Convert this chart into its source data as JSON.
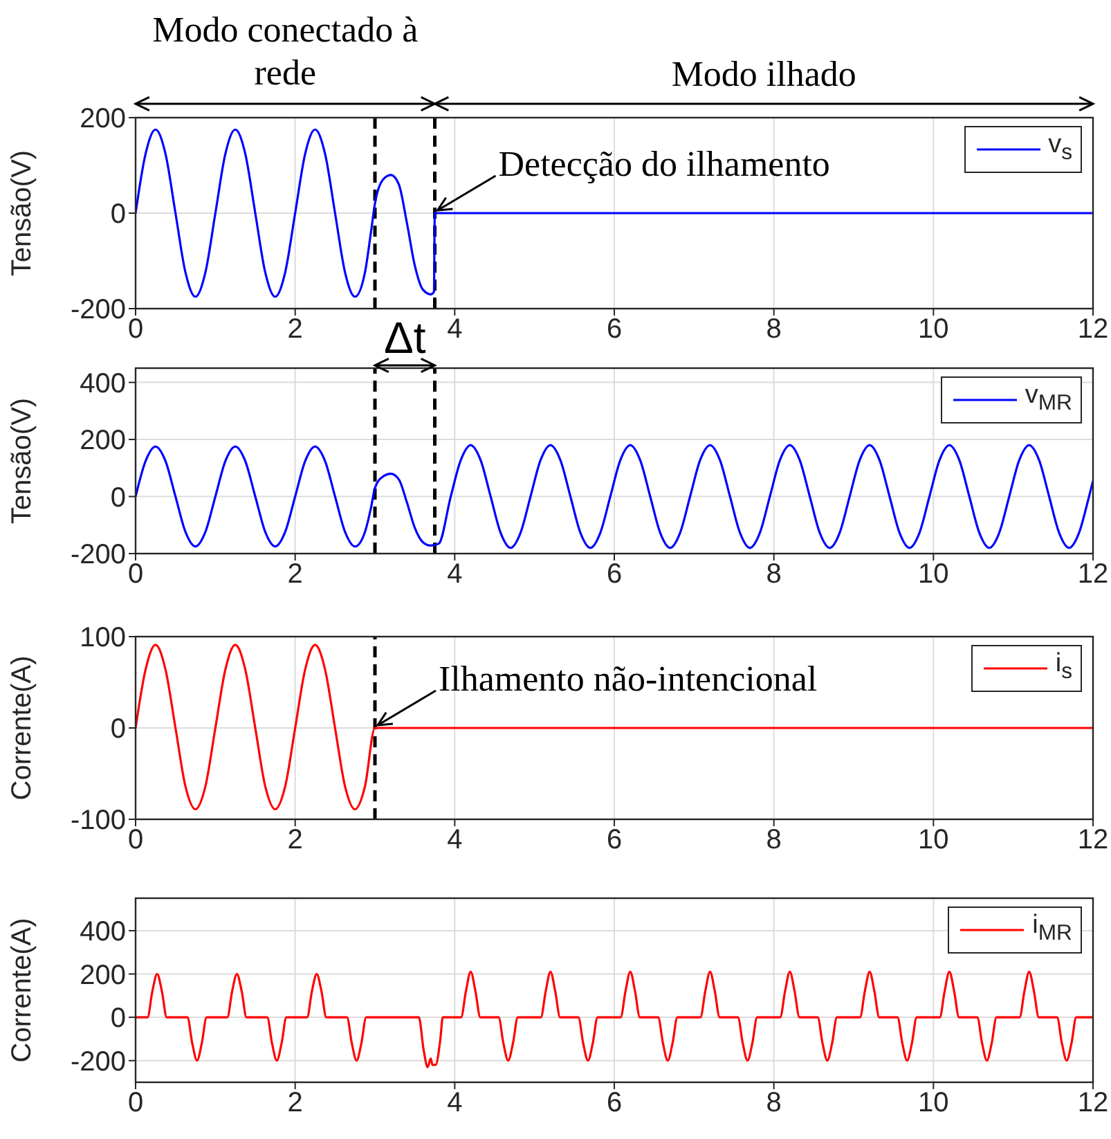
{
  "chart_data": [
    {
      "type": "line",
      "ylabel": "Tensão(V)",
      "xlim": [
        0,
        12
      ],
      "xticks": [
        0,
        2,
        4,
        6,
        8,
        10,
        12
      ],
      "ylim": [
        -200,
        200
      ],
      "yticks": [
        -200,
        0,
        200
      ],
      "grid": true,
      "legend": "top right",
      "line_style": "solid",
      "series": [
        {
          "name": "v$_{s}$",
          "color": "#0000ff",
          "x": [
            0,
            0.125,
            0.25,
            0.375,
            0.5,
            0.625,
            0.75,
            0.875,
            1,
            1.125,
            1.25,
            1.375,
            1.5,
            1.625,
            1.75,
            1.875,
            2,
            2.125,
            2.25,
            2.375,
            2.5,
            2.625,
            2.75,
            2.875,
            2.95,
            3.0,
            3.1,
            3.2,
            3.3,
            3.4,
            3.5,
            3.6,
            3.7,
            3.74,
            3.75,
            12
          ],
          "values": [
            0,
            124,
            175,
            124,
            0,
            -124,
            -175,
            -124,
            0,
            124,
            175,
            124,
            0,
            -124,
            -175,
            -124,
            0,
            124,
            175,
            124,
            0,
            -124,
            -175,
            -124,
            -40,
            20,
            70,
            80,
            60,
            -20,
            -110,
            -160,
            -170,
            -165,
            0,
            0
          ]
        }
      ],
      "ref_lines": [
        {
          "axis": "x",
          "value": 3,
          "color": "#000000",
          "line_style": "dashed"
        },
        {
          "axis": "x",
          "value": 3.75,
          "color": "#000000",
          "line_style": "dashed"
        }
      ],
      "annotations": [
        "Modo conectado à rede",
        "Modo ilhado",
        "Δt",
        {
          "text": "Detecção do ilhamento",
          "x": 3.75,
          "y": 0
        }
      ]
    },
    {
      "type": "line",
      "ylabel": "Tensão(V)",
      "xlim": [
        0,
        12
      ],
      "xticks": [
        0,
        2,
        4,
        6,
        8,
        10,
        12
      ],
      "ylim": [
        -200,
        450
      ],
      "yticks": [
        -200,
        0,
        200,
        400
      ],
      "grid": true,
      "legend": "top right",
      "line_style": "solid",
      "series": [
        {
          "name": "v$_{MR}$",
          "color": "#0000ff",
          "x": [
            0,
            0.125,
            0.25,
            0.375,
            0.5,
            0.625,
            0.75,
            0.875,
            1,
            1.125,
            1.25,
            1.375,
            1.5,
            1.625,
            1.75,
            1.875,
            2,
            2.125,
            2.25,
            2.375,
            2.5,
            2.625,
            2.75,
            2.875,
            2.95,
            3.0,
            3.1,
            3.2,
            3.3,
            3.4,
            3.5,
            3.6,
            3.7,
            3.8,
            3.95,
            4.075,
            4.2,
            4.325,
            4.45,
            4.575,
            4.7,
            4.825,
            4.95,
            5.075,
            5.2,
            5.325,
            5.45,
            5.575,
            5.7,
            5.825,
            5.95,
            6.075,
            6.2,
            6.325,
            6.45,
            6.575,
            6.7,
            6.825,
            6.95,
            7.075,
            7.2,
            7.325,
            7.45,
            7.575,
            7.7,
            7.825,
            7.95,
            8.075,
            8.2,
            8.325,
            8.45,
            8.575,
            8.7,
            8.825,
            8.95,
            9.075,
            9.2,
            9.325,
            9.45,
            9.575,
            9.7,
            9.825,
            9.95,
            10.075,
            10.2,
            10.325,
            10.45,
            10.575,
            10.7,
            10.825,
            10.95,
            11.075,
            11.2,
            11.325,
            11.45,
            11.575,
            11.7,
            11.825,
            11.95,
            12
          ],
          "values": [
            0,
            124,
            175,
            124,
            0,
            -124,
            -175,
            -124,
            0,
            124,
            175,
            124,
            0,
            -124,
            -175,
            -124,
            0,
            124,
            175,
            124,
            0,
            -124,
            -175,
            -124,
            -40,
            30,
            70,
            80,
            60,
            -20,
            -110,
            -160,
            -172,
            -165,
            0,
            127,
            180,
            127,
            0,
            -127,
            -180,
            -127,
            0,
            127,
            180,
            127,
            0,
            -127,
            -180,
            -127,
            0,
            127,
            180,
            127,
            0,
            -127,
            -180,
            -127,
            0,
            127,
            180,
            127,
            0,
            -127,
            -180,
            -127,
            0,
            127,
            180,
            127,
            0,
            -127,
            -180,
            -127,
            0,
            127,
            180,
            127,
            0,
            -127,
            -180,
            -127,
            0,
            127,
            180,
            127,
            0,
            -127,
            -180,
            -127,
            0,
            127,
            180,
            127,
            0,
            -127,
            -180,
            -127,
            0,
            55
          ]
        }
      ],
      "ref_lines": [
        {
          "axis": "x",
          "value": 3,
          "color": "#000000",
          "line_style": "dashed"
        },
        {
          "axis": "x",
          "value": 3.75,
          "color": "#000000",
          "line_style": "dashed"
        }
      ]
    },
    {
      "type": "line",
      "ylabel": "Corrente(A)",
      "xlim": [
        0,
        12
      ],
      "xticks": [
        0,
        2,
        4,
        6,
        8,
        10,
        12
      ],
      "ylim": [
        -100,
        100
      ],
      "yticks": [
        -100,
        0,
        100
      ],
      "grid": true,
      "legend": "top right",
      "line_style": "solid",
      "series": [
        {
          "name": "i$_{s}$",
          "color": "#ff0000",
          "x": [
            0,
            0.125,
            0.25,
            0.375,
            0.5,
            0.625,
            0.75,
            0.875,
            1,
            1.125,
            1.25,
            1.375,
            1.5,
            1.625,
            1.75,
            1.875,
            2,
            2.125,
            2.25,
            2.375,
            2.5,
            2.625,
            2.75,
            2.875,
            3.0,
            12
          ],
          "values": [
            0,
            64,
            91,
            64,
            0,
            -64,
            -89,
            -64,
            0,
            64,
            91,
            64,
            0,
            -64,
            -89,
            -64,
            0,
            64,
            91,
            64,
            0,
            -64,
            -89,
            -64,
            0,
            0
          ]
        }
      ],
      "ref_lines": [
        {
          "axis": "x",
          "value": 3,
          "color": "#000000",
          "line_style": "dashed"
        }
      ],
      "annotations": [
        {
          "text": "Ilhamento não-intencional",
          "x": 3,
          "y": 0
        }
      ]
    },
    {
      "type": "line",
      "ylabel": "Corrente(A)",
      "xlim": [
        0,
        12
      ],
      "xticks": [
        0,
        2,
        4,
        6,
        8,
        10,
        12
      ],
      "ylim": [
        -300,
        550
      ],
      "yticks": [
        -200,
        0,
        200,
        400
      ],
      "grid": true,
      "legend": "top right",
      "line_style": "solid",
      "series": [
        {
          "name": "i$_{MR}$",
          "color": "#ff0000",
          "x": [
            0,
            0.15,
            0.21,
            0.27,
            0.33,
            0.39,
            0.65,
            0.71,
            0.77,
            0.83,
            0.89,
            1.15,
            1.21,
            1.27,
            1.33,
            1.39,
            1.65,
            1.71,
            1.77,
            1.83,
            1.89,
            2.15,
            2.21,
            2.27,
            2.33,
            2.39,
            2.65,
            2.71,
            2.77,
            2.83,
            2.89,
            3.55,
            3.61,
            3.66,
            3.7,
            3.72,
            3.76,
            3.82,
            3.85,
            4.08,
            4.14,
            4.2,
            4.26,
            4.32,
            4.55,
            4.61,
            4.67,
            4.73,
            4.79,
            5.08,
            5.14,
            5.2,
            5.26,
            5.32,
            5.55,
            5.61,
            5.67,
            5.73,
            5.79,
            6.08,
            6.14,
            6.2,
            6.26,
            6.32,
            6.55,
            6.61,
            6.67,
            6.73,
            6.79,
            7.08,
            7.14,
            7.2,
            7.26,
            7.32,
            7.55,
            7.61,
            7.67,
            7.73,
            7.79,
            8.08,
            8.14,
            8.2,
            8.26,
            8.32,
            8.55,
            8.61,
            8.67,
            8.73,
            8.79,
            9.08,
            9.14,
            9.2,
            9.26,
            9.32,
            9.55,
            9.61,
            9.67,
            9.73,
            9.79,
            10.08,
            10.14,
            10.2,
            10.26,
            10.32,
            10.55,
            10.61,
            10.67,
            10.73,
            10.79,
            11.08,
            11.14,
            11.2,
            11.26,
            11.32,
            11.55,
            11.61,
            11.67,
            11.73,
            11.79,
            12
          ],
          "values": [
            0,
            0,
            120,
            200,
            120,
            0,
            0,
            -120,
            -200,
            -120,
            0,
            0,
            120,
            200,
            120,
            0,
            0,
            -120,
            -200,
            -120,
            0,
            0,
            120,
            200,
            120,
            0,
            0,
            -120,
            -200,
            -120,
            0,
            0,
            -150,
            -230,
            -190,
            -220,
            -220,
            -100,
            0,
            0,
            120,
            210,
            120,
            0,
            0,
            -120,
            -200,
            -120,
            0,
            0,
            120,
            210,
            120,
            0,
            0,
            -120,
            -200,
            -120,
            0,
            0,
            120,
            210,
            120,
            0,
            0,
            -120,
            -200,
            -120,
            0,
            0,
            120,
            210,
            120,
            0,
            0,
            -120,
            -200,
            -120,
            0,
            0,
            120,
            210,
            120,
            0,
            0,
            -120,
            -200,
            -120,
            0,
            0,
            120,
            210,
            120,
            0,
            0,
            -120,
            -200,
            -120,
            0,
            0,
            120,
            210,
            120,
            0,
            0,
            -120,
            -200,
            -120,
            0,
            0,
            120,
            210,
            120,
            0,
            0,
            -120,
            -200,
            -120,
            0,
            0
          ]
        }
      ]
    }
  ]
}
